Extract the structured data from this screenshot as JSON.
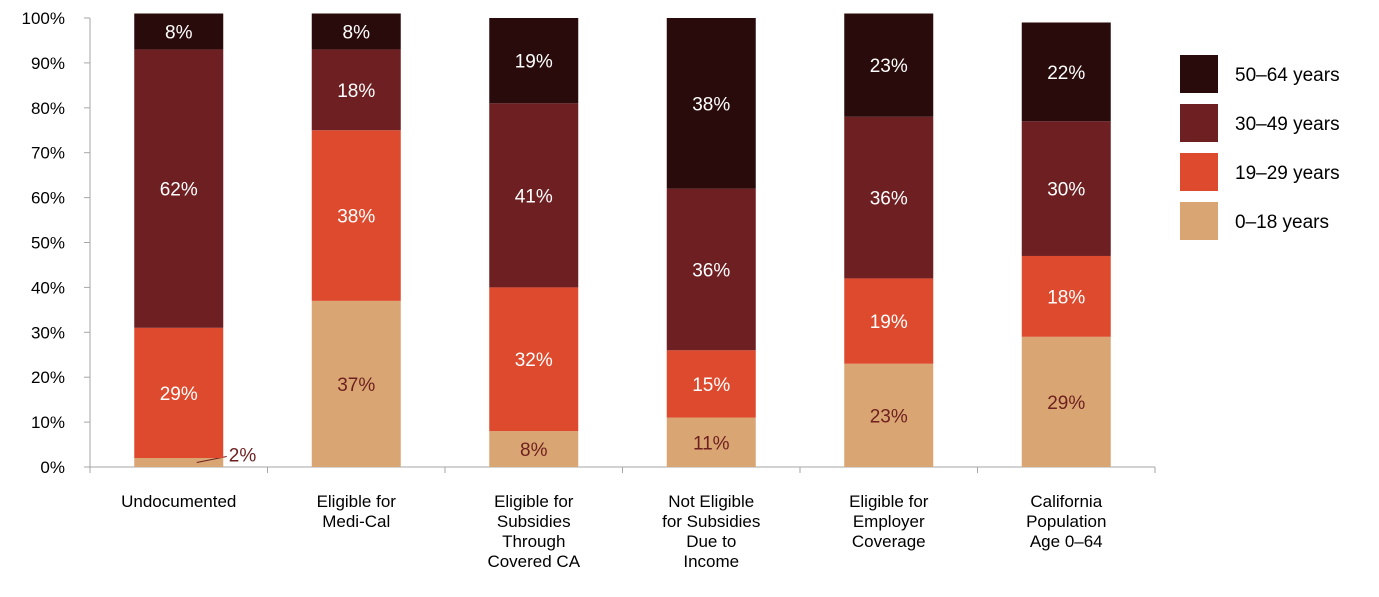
{
  "chart_data": {
    "type": "bar",
    "stacked": true,
    "orientation": "vertical",
    "categories": [
      [
        "Undocumented"
      ],
      [
        "Eligible for",
        "Medi-Cal"
      ],
      [
        "Eligible for",
        "Subsidies",
        "Through",
        "Covered CA"
      ],
      [
        "Not Eligible",
        "for Subsidies",
        "Due to",
        "Income"
      ],
      [
        "Eligible for",
        "Employer",
        "Coverage"
      ],
      [
        "California",
        "Population",
        "Age 0–64"
      ]
    ],
    "series": [
      {
        "name": "0–18 years",
        "color": "#D9A673",
        "label_color": "#6E1F1F",
        "values": [
          2,
          37,
          8,
          11,
          23,
          29
        ],
        "labels": [
          "2%",
          "37%",
          "8%",
          "11%",
          "23%",
          "29%"
        ]
      },
      {
        "name": "19–29 years",
        "color": "#DE4A2E",
        "label_color": "#FFFFFF",
        "values": [
          29,
          38,
          32,
          15,
          19,
          18
        ],
        "labels": [
          "29%",
          "38%",
          "32%",
          "15%",
          "19%",
          "18%"
        ]
      },
      {
        "name": "30–49 years",
        "color": "#6E1F22",
        "label_color": "#FFFFFF",
        "values": [
          62,
          18,
          41,
          36,
          36,
          30
        ],
        "labels": [
          "62%",
          "18%",
          "41%",
          "36%",
          "36%",
          "30%"
        ]
      },
      {
        "name": "50–64 years",
        "color": "#2A0B0B",
        "label_color": "#FFFFFF",
        "values": [
          8,
          8,
          19,
          38,
          23,
          22
        ],
        "labels": [
          "8%",
          "8%",
          "19%",
          "38%",
          "23%",
          "22%"
        ]
      }
    ],
    "legend_order": [
      3,
      2,
      1,
      0
    ],
    "legend_position": "right",
    "yticks": [
      "0%",
      "10%",
      "20%",
      "30%",
      "40%",
      "50%",
      "60%",
      "70%",
      "80%",
      "90%",
      "100%"
    ],
    "ylim": [
      0,
      100
    ],
    "grid": false,
    "title": "",
    "xlabel": "",
    "ylabel": ""
  }
}
